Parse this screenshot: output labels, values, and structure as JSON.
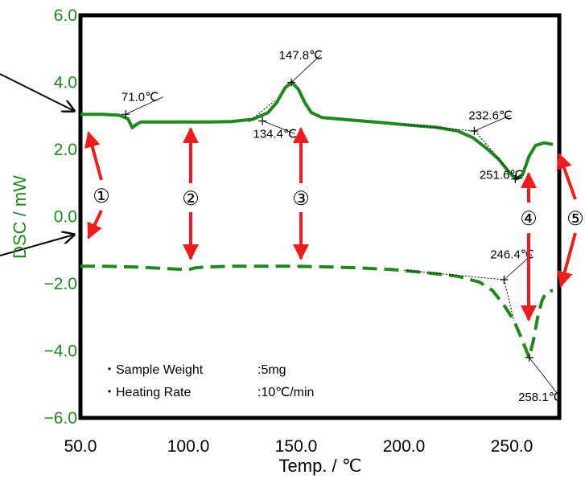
{
  "chart_data": {
    "type": "line",
    "title": "",
    "xlabel": "Temp. / ℃",
    "ylabel": "DSC / mW",
    "xlim": [
      50,
      272
    ],
    "ylim": [
      -6,
      6
    ],
    "x_ticks": [
      {
        "value": 50,
        "label": "50.0"
      },
      {
        "value": 100,
        "label": "100.0"
      },
      {
        "value": 150,
        "label": "150.0"
      },
      {
        "value": 200,
        "label": "200.0"
      },
      {
        "value": 250,
        "label": "250.0"
      }
    ],
    "y_ticks": [
      {
        "value": 6,
        "label": "6.0"
      },
      {
        "value": 4,
        "label": "4.0"
      },
      {
        "value": 2,
        "label": "2.0"
      },
      {
        "value": 0,
        "label": "0.0"
      },
      {
        "value": -2,
        "label": "−2.0"
      },
      {
        "value": -4,
        "label": "−4.0"
      },
      {
        "value": -6,
        "label": "−6.0"
      }
    ],
    "colors": {
      "series": "#1e8a1e",
      "arrow": "#ee1c1c",
      "axis_labels": "#1e8a1e"
    },
    "series": [
      {
        "style": "solid",
        "points": [
          [
            50,
            3.05
          ],
          [
            60,
            3.05
          ],
          [
            68,
            3.02
          ],
          [
            72,
            2.92
          ],
          [
            74,
            2.65
          ],
          [
            76,
            2.75
          ],
          [
            78,
            2.82
          ],
          [
            85,
            2.82
          ],
          [
            100,
            2.82
          ],
          [
            110,
            2.82
          ],
          [
            120,
            2.83
          ],
          [
            130,
            2.9
          ],
          [
            137,
            3.1
          ],
          [
            141,
            3.4
          ],
          [
            145,
            3.85
          ],
          [
            148,
            4.0
          ],
          [
            151,
            3.8
          ],
          [
            154,
            3.4
          ],
          [
            157,
            3.1
          ],
          [
            162,
            2.95
          ],
          [
            175,
            2.88
          ],
          [
            190,
            2.8
          ],
          [
            200,
            2.74
          ],
          [
            215,
            2.66
          ],
          [
            225,
            2.55
          ],
          [
            232,
            2.35
          ],
          [
            238,
            2.05
          ],
          [
            244,
            1.7
          ],
          [
            249,
            1.3
          ],
          [
            252,
            1.12
          ],
          [
            255,
            1.25
          ],
          [
            258,
            1.8
          ],
          [
            261,
            2.12
          ],
          [
            265,
            2.2
          ],
          [
            269,
            2.15
          ]
        ]
      },
      {
        "style": "dashed",
        "points": [
          [
            50,
            -1.48
          ],
          [
            60,
            -1.48
          ],
          [
            75,
            -1.5
          ],
          [
            90,
            -1.55
          ],
          [
            100,
            -1.58
          ],
          [
            103,
            -1.53
          ],
          [
            108,
            -1.5
          ],
          [
            120,
            -1.48
          ],
          [
            135,
            -1.48
          ],
          [
            150,
            -1.48
          ],
          [
            165,
            -1.5
          ],
          [
            180,
            -1.53
          ],
          [
            195,
            -1.58
          ],
          [
            210,
            -1.67
          ],
          [
            225,
            -1.78
          ],
          [
            235,
            -1.95
          ],
          [
            241,
            -2.2
          ],
          [
            246,
            -2.6
          ],
          [
            251,
            -3.1
          ],
          [
            255,
            -3.7
          ],
          [
            258,
            -4.2
          ],
          [
            260,
            -3.7
          ],
          [
            262,
            -3.0
          ],
          [
            264,
            -2.5
          ],
          [
            266,
            -2.25
          ],
          [
            269,
            -2.2
          ]
        ]
      }
    ],
    "annotations": [
      {
        "label": "71.0℃",
        "x": 71.0,
        "y": 3.05,
        "label_x": 69,
        "label_y": 3.45
      },
      {
        "label": "147.8℃",
        "x": 147.8,
        "y": 4.0,
        "label_x": 142,
        "label_y": 4.7
      },
      {
        "label": "134.4℃",
        "x": 134.4,
        "y": 2.85,
        "label_x": 130,
        "label_y": 2.35
      },
      {
        "label": "232.6℃",
        "x": 232.6,
        "y": 2.55,
        "label_x": 230,
        "label_y": 2.9
      },
      {
        "label": "251.6℃",
        "x": 251.6,
        "y": 1.12,
        "label_x": 235,
        "label_y": 1.12
      },
      {
        "label": "246.4℃",
        "x": 246.4,
        "y": -1.88,
        "label_x": 240,
        "label_y": -1.25
      },
      {
        "label": "258.1℃",
        "x": 258.1,
        "y": -4.2,
        "label_x": 253,
        "label_y": -5.5
      }
    ],
    "regions": [
      "①",
      "②",
      "③",
      "④",
      "⑤"
    ],
    "notes": [
      {
        "label": "・Sample Weight",
        "value": ":5mg"
      },
      {
        "label": "・Heating Rate",
        "value": ":10℃/min"
      }
    ]
  }
}
